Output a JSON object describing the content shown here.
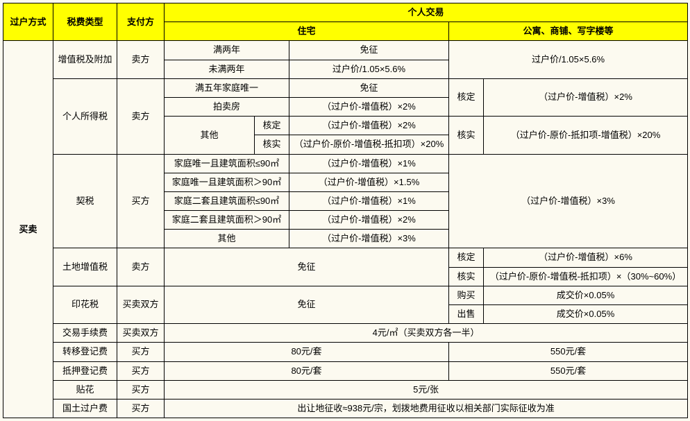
{
  "colors": {
    "header_bg": "#ffff00",
    "page_bg": "#fcfaf0",
    "border": "#000000",
    "text": "#000000"
  },
  "h": {
    "method": "过户方式",
    "taxtype": "税费类型",
    "payer": "支付方",
    "personal": "个人交易",
    "resid": "住宅",
    "comm": "公寓、商铺、写字楼等"
  },
  "method": "买卖",
  "r1": {
    "tax": "增值税及附加",
    "payer": "卖方",
    "a1": "满两年",
    "v1": "免征",
    "a2": "未满两年",
    "v2": "过户价/1.05×5.6%",
    "c": "过户价/1.05×5.6%"
  },
  "r2": {
    "tax": "个人所得税",
    "payer": "卖方",
    "a1": "满五年家庭唯一",
    "v1": "免征",
    "a2": "拍卖房",
    "v2": "（过户价-增值税）×2%",
    "a3": "其他",
    "s1": "核定",
    "v3": "（过户价-增值税）×2%",
    "s2": "核实",
    "v4": "（过户价-原价-增值税-抵扣项）×20%",
    "c1a": "核定",
    "c1b": "（过户价-增值税）×2%",
    "c2a": "核实",
    "c2b": "（过户价-原价-抵扣项-增值税）×20%"
  },
  "r3": {
    "tax": "契税",
    "payer": "买方",
    "a1": "家庭唯一且建筑面积≤90㎡",
    "v1": "（过户价-增值税）×1%",
    "a2": "家庭唯一且建筑面积＞90㎡",
    "v2": "（过户价-增值税）×1.5%",
    "a3": "家庭二套且建筑面积≤90㎡",
    "v3": "（过户价-增值税）×1%",
    "a4": "家庭二套且建筑面积＞90㎡",
    "v4": "（过户价-增值税）×2%",
    "a5": "其他",
    "v5": "（过户价-增值税）×3%",
    "c": "（过户价-增值税）×3%"
  },
  "r4": {
    "tax": "土地增值税",
    "payer": "卖方",
    "v": "免征",
    "c1a": "核定",
    "c1b": "（过户价-增值税）×6%",
    "c2a": "核实",
    "c2b": "（过户价-原价-增值税-抵扣项）×（30%~60%）"
  },
  "r5": {
    "tax": "印花税",
    "payer": "买卖双方",
    "v": "免征",
    "c1a": "购买",
    "c1b": "成交价×0.05%",
    "c2a": "出售",
    "c2b": "成交价×0.05%"
  },
  "r6": {
    "tax": "交易手续费",
    "payer": "买卖双方",
    "v": "4元/㎡（买卖双方各一半）"
  },
  "r7": {
    "tax": "转移登记费",
    "payer": "买方",
    "v": "80元/套",
    "c": "550元/套"
  },
  "r8": {
    "tax": "抵押登记费",
    "payer": "买方",
    "v": "80元/套",
    "c": "550元/套"
  },
  "r9": {
    "tax": "贴花",
    "payer": "买方",
    "v": "5元/张"
  },
  "r10": {
    "tax": "国土过户费",
    "payer": "买方",
    "v": "出让地征收≈938元/宗，划拨地费用征收以相关部门实际征收为准"
  }
}
